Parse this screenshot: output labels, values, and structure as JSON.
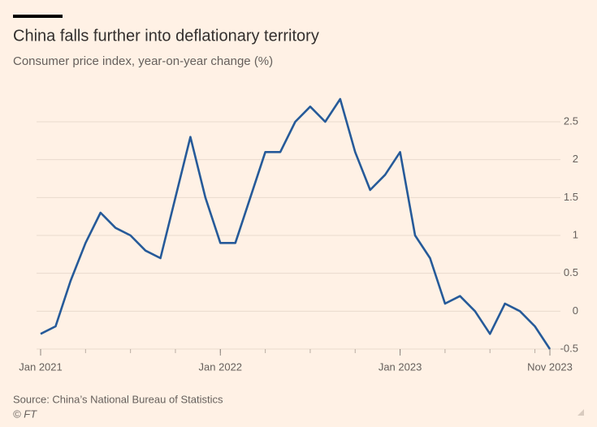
{
  "chart_data": {
    "type": "line",
    "title": "China falls further into deflationary territory",
    "subtitle": "Consumer price index, year-on-year change (%)",
    "source": "Source: China’s National Bureau of Statistics",
    "credit": "© FT",
    "x": [
      "2021-01",
      "2021-02",
      "2021-03",
      "2021-04",
      "2021-05",
      "2021-06",
      "2021-07",
      "2021-08",
      "2021-09",
      "2021-10",
      "2021-11",
      "2021-12",
      "2022-01",
      "2022-02",
      "2022-03",
      "2022-04",
      "2022-05",
      "2022-06",
      "2022-07",
      "2022-08",
      "2022-09",
      "2022-10",
      "2022-11",
      "2022-12",
      "2023-01",
      "2023-02",
      "2023-03",
      "2023-04",
      "2023-05",
      "2023-06",
      "2023-07",
      "2023-08",
      "2023-09",
      "2023-10",
      "2023-11"
    ],
    "values": [
      -0.3,
      -0.2,
      0.4,
      0.9,
      1.3,
      1.1,
      1.0,
      0.8,
      0.7,
      1.5,
      2.3,
      1.5,
      0.9,
      0.9,
      1.5,
      2.1,
      2.1,
      2.5,
      2.7,
      2.5,
      2.8,
      2.1,
      1.6,
      1.8,
      2.1,
      1.0,
      0.7,
      0.1,
      0.2,
      0.0,
      -0.3,
      0.1,
      0.0,
      -0.2,
      -0.5
    ],
    "color": "#265a99",
    "xticks": [
      {
        "value": "2021-01",
        "label": "Jan 2021"
      },
      {
        "value": "2022-01",
        "label": "Jan 2022"
      },
      {
        "value": "2023-01",
        "label": "Jan 2023"
      },
      {
        "value": "2023-11",
        "label": "Nov 2023"
      }
    ],
    "ylim": [
      -0.5,
      2.8
    ],
    "yticks": [
      -0.5,
      0,
      0.5,
      1.0,
      1.5,
      2.0,
      2.5
    ],
    "grid": true
  }
}
